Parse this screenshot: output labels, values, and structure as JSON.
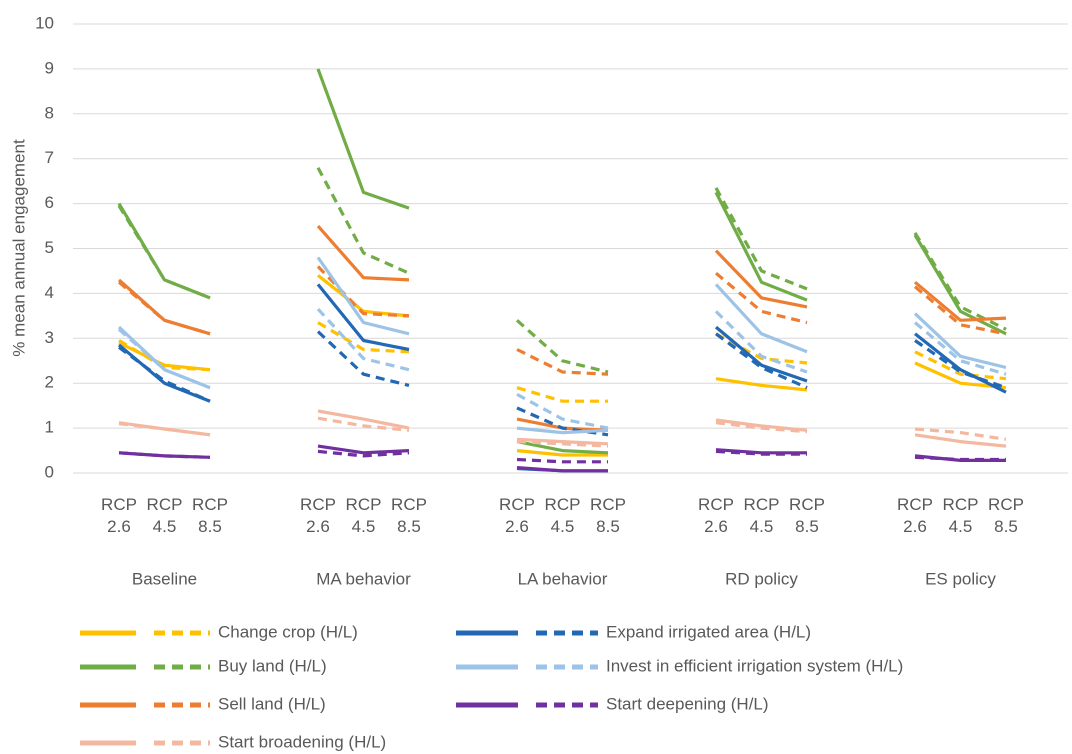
{
  "chart_data": {
    "type": "line",
    "y_label": "% mean annual engagement",
    "groups": [
      "Baseline",
      "MA behavior",
      "LA behavior",
      "RD policy",
      "ES policy"
    ],
    "scenarios": [
      "RCP 2.6",
      "RCP 4.5",
      "RCP 8.5"
    ],
    "ylim": [
      0,
      10
    ],
    "yticks": [
      0,
      1,
      2,
      3,
      4,
      5,
      6,
      7,
      8,
      9,
      10
    ],
    "grid": true,
    "legend": "bottom",
    "series": [
      {
        "name": "Change crop (H/L)",
        "color": "#ffc000",
        "high": [
          [
            2.9,
            2.4,
            2.3
          ],
          [
            4.4,
            3.6,
            3.5
          ],
          [
            0.5,
            0.4,
            0.4
          ],
          [
            2.1,
            1.95,
            1.85
          ],
          [
            2.45,
            2.0,
            1.9
          ]
        ],
        "low": [
          [
            2.95,
            2.35,
            2.3
          ],
          [
            3.35,
            2.75,
            2.7
          ],
          [
            1.9,
            1.6,
            1.6
          ],
          [
            3.1,
            2.55,
            2.45
          ],
          [
            2.7,
            2.2,
            2.1
          ]
        ]
      },
      {
        "name": "Buy land (H/L)",
        "color": "#70ad47",
        "high": [
          [
            6.0,
            4.3,
            3.9
          ],
          [
            9.0,
            6.25,
            5.9
          ],
          [
            0.7,
            0.5,
            0.45
          ],
          [
            6.25,
            4.25,
            3.85
          ],
          [
            5.3,
            3.6,
            3.1
          ]
        ],
        "low": [
          [
            5.95,
            4.3,
            3.9
          ],
          [
            6.8,
            4.9,
            4.45
          ],
          [
            3.4,
            2.5,
            2.25
          ],
          [
            6.35,
            4.5,
            4.1
          ],
          [
            5.35,
            3.7,
            3.2
          ]
        ]
      },
      {
        "name": "Sell land (H/L)",
        "color": "#ed7d31",
        "high": [
          [
            4.3,
            3.4,
            3.1
          ],
          [
            5.5,
            4.35,
            4.3
          ],
          [
            1.2,
            1.0,
            0.95
          ],
          [
            4.95,
            3.9,
            3.7
          ],
          [
            4.25,
            3.4,
            3.45
          ]
        ],
        "low": [
          [
            4.25,
            3.4,
            3.1
          ],
          [
            4.6,
            3.55,
            3.5
          ],
          [
            2.75,
            2.25,
            2.2
          ],
          [
            4.45,
            3.6,
            3.35
          ],
          [
            4.15,
            3.3,
            3.1
          ]
        ]
      },
      {
        "name": "Start broadening (H/L)",
        "color": "#f4b8a0",
        "high": [
          [
            1.12,
            0.98,
            0.85
          ],
          [
            1.38,
            1.2,
            1.0
          ],
          [
            0.75,
            0.7,
            0.65
          ],
          [
            1.18,
            1.05,
            0.95
          ],
          [
            0.85,
            0.7,
            0.6
          ]
        ],
        "low": [
          [
            1.1,
            0.98,
            0.85
          ],
          [
            1.22,
            1.05,
            0.95
          ],
          [
            0.7,
            0.65,
            0.6
          ],
          [
            1.12,
            1.0,
            0.92
          ],
          [
            0.98,
            0.9,
            0.75
          ]
        ]
      },
      {
        "name": "Expand irrigated area (H/L)",
        "color": "#2268b4",
        "high": [
          [
            2.85,
            2.0,
            1.6
          ],
          [
            4.2,
            2.95,
            2.75
          ],
          [
            0.1,
            0.05,
            0.05
          ],
          [
            3.25,
            2.4,
            2.05
          ],
          [
            3.1,
            2.3,
            1.8
          ]
        ],
        "low": [
          [
            2.8,
            2.05,
            1.6
          ],
          [
            3.15,
            2.2,
            1.95
          ],
          [
            1.45,
            1.0,
            0.85
          ],
          [
            3.1,
            2.35,
            1.9
          ],
          [
            2.95,
            2.25,
            1.9
          ]
        ]
      },
      {
        "name": "Invest in efficient irrigation system (H/L)",
        "color": "#9dc3e6",
        "high": [
          [
            3.25,
            2.3,
            1.9
          ],
          [
            4.8,
            3.35,
            3.1
          ],
          [
            1.0,
            0.9,
            0.95
          ],
          [
            4.2,
            3.1,
            2.7
          ],
          [
            3.55,
            2.6,
            2.35
          ]
        ],
        "low": [
          [
            3.2,
            2.3,
            1.9
          ],
          [
            3.65,
            2.55,
            2.3
          ],
          [
            1.75,
            1.2,
            1.0
          ],
          [
            3.6,
            2.6,
            2.25
          ],
          [
            3.35,
            2.5,
            2.2
          ]
        ]
      },
      {
        "name": "Start deepening (H/L)",
        "color": "#7030a0",
        "high": [
          [
            0.45,
            0.38,
            0.35
          ],
          [
            0.6,
            0.45,
            0.5
          ],
          [
            0.12,
            0.05,
            0.05
          ],
          [
            0.52,
            0.45,
            0.45
          ],
          [
            0.38,
            0.28,
            0.28
          ]
        ],
        "low": [
          [
            0.45,
            0.38,
            0.35
          ],
          [
            0.48,
            0.38,
            0.45
          ],
          [
            0.3,
            0.25,
            0.25
          ],
          [
            0.48,
            0.42,
            0.42
          ],
          [
            0.35,
            0.3,
            0.3
          ]
        ]
      }
    ]
  }
}
